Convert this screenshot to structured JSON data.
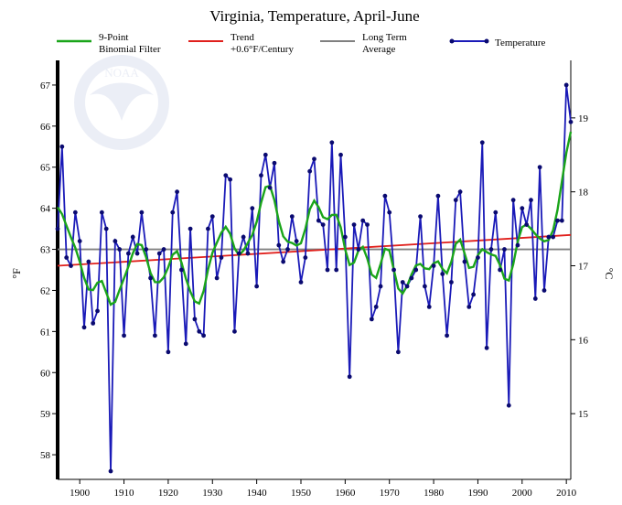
{
  "chart_data": {
    "type": "line",
    "title": "Virginia, Temperature, April-June",
    "ylabel_left": "°F",
    "ylabel_right": "°C",
    "xlim": [
      1895,
      2011
    ],
    "ylim": [
      57.4,
      67.6
    ],
    "x_ticks": [
      1900,
      1910,
      1920,
      1930,
      1940,
      1950,
      1960,
      1970,
      1980,
      1990,
      2000,
      2010
    ],
    "y_ticks_f": [
      58,
      59,
      60,
      61,
      62,
      63,
      64,
      65,
      66,
      67
    ],
    "y_ticks_c": [
      15,
      16,
      17,
      18,
      19
    ],
    "grid": false,
    "legend": [
      {
        "key": "filter",
        "line1": "9-Point",
        "line2": "Binomial Filter",
        "color": "#1aa51a"
      },
      {
        "key": "trend",
        "line1": "Trend",
        "line2": "+0.6°F/Century",
        "color": "#e0201c"
      },
      {
        "key": "average",
        "line1": "Long Term",
        "line2": "Average",
        "color": "#808080"
      },
      {
        "key": "temperature",
        "line1": "Temperature",
        "line2": "",
        "color": "#1a1ab8"
      }
    ],
    "start_year": 1895,
    "temperature": [
      63.5,
      65.5,
      62.8,
      62.6,
      63.9,
      63.2,
      61.1,
      62.7,
      61.2,
      61.5,
      63.9,
      63.5,
      57.6,
      63.2,
      63.0,
      60.9,
      62.9,
      63.3,
      62.9,
      63.9,
      63.0,
      62.3,
      60.9,
      62.9,
      63.0,
      60.5,
      63.9,
      64.4,
      62.5,
      60.7,
      63.5,
      61.3,
      61.0,
      60.9,
      63.5,
      63.8,
      62.3,
      62.8,
      64.8,
      64.7,
      61.0,
      62.9,
      63.3,
      62.9,
      64.0,
      62.1,
      64.8,
      65.3,
      64.5,
      65.1,
      63.1,
      62.7,
      63.0,
      63.8,
      63.2,
      62.2,
      62.8,
      64.9,
      65.2,
      63.7,
      63.6,
      62.5,
      65.6,
      62.5,
      65.3,
      63.3,
      59.9,
      63.6,
      63.0,
      63.7,
      63.6,
      61.3,
      61.6,
      62.1,
      64.3,
      63.9,
      62.5,
      60.5,
      62.2,
      62.1,
      62.3,
      62.5,
      63.8,
      62.1,
      61.6,
      62.6,
      64.3,
      62.4,
      60.9,
      62.2,
      64.2,
      64.4,
      62.7,
      61.6,
      61.9,
      62.8,
      65.6,
      60.6,
      63.0,
      63.9,
      62.5,
      63.0,
      59.2,
      64.2,
      63.1,
      64.0,
      63.6,
      64.2,
      61.8,
      65.0,
      62.0,
      63.3,
      63.3,
      63.7,
      63.7,
      67.0,
      66.1
    ],
    "average": 63.0,
    "trend_start": [
      1895,
      62.6
    ],
    "trend_end": [
      2011,
      63.35
    ]
  }
}
